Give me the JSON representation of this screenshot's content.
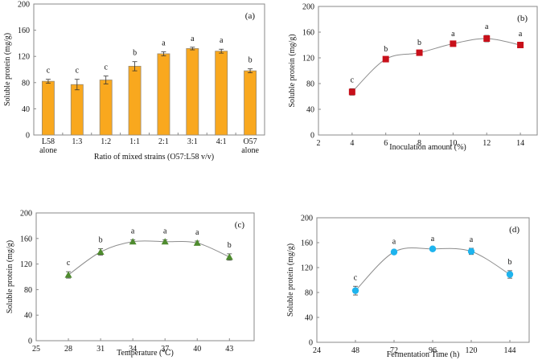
{
  "chart_data": [
    {
      "type": "bar",
      "panel_label": "(a)",
      "categories": [
        "L58\nalone",
        "1:3",
        "1:2",
        "1:1",
        "2:1",
        "3:1",
        "4:1",
        "O57\nalone"
      ],
      "values": [
        82,
        77,
        84,
        105,
        124,
        132,
        128,
        98
      ],
      "errors": [
        3,
        8,
        6,
        7,
        3,
        2,
        3,
        3
      ],
      "letters": [
        "c",
        "c",
        "c",
        "b",
        "a",
        "a",
        "a",
        "b"
      ],
      "xlabel": "Ratio of mixed strains (O57:L58 v/v)",
      "ylabel": "Soluble protein (mg/g)",
      "ylim": [
        0,
        200
      ],
      "yticks": [
        0,
        40,
        80,
        120,
        160,
        200
      ],
      "color": "#F9A81E",
      "grid": false
    },
    {
      "type": "line",
      "panel_label": "(b)",
      "x": [
        4,
        6,
        8,
        10,
        12,
        14
      ],
      "values": [
        67,
        118,
        128,
        142,
        150,
        140
      ],
      "errors": [
        5,
        2,
        2,
        2,
        5,
        4
      ],
      "letters": [
        "c",
        "b",
        "b",
        "a",
        "a",
        "a"
      ],
      "xlabel": "Inoculation amount  (%)",
      "ylabel": "Soluble protein (mg/g)",
      "xlim": [
        2,
        15
      ],
      "xticks": [
        2,
        4,
        6,
        8,
        10,
        12,
        14
      ],
      "ylim": [
        0,
        200
      ],
      "yticks": [
        0,
        40,
        80,
        120,
        160,
        200
      ],
      "marker": "square",
      "color": "#C8101A",
      "grid": false
    },
    {
      "type": "line",
      "panel_label": "(c)",
      "x": [
        28,
        31,
        34,
        37,
        40,
        43
      ],
      "values": [
        103,
        139,
        155,
        155,
        153,
        131
      ],
      "errors": [
        5,
        5,
        3,
        3,
        3,
        5
      ],
      "letters": [
        "c",
        "b",
        "a",
        "a",
        "a",
        "b"
      ],
      "xlabel": "Temperature (℃)",
      "ylabel": "Soluble protein (mg/g)",
      "xlim": [
        25,
        45.3
      ],
      "xticks": [
        25,
        28,
        31,
        34,
        37,
        40,
        43
      ],
      "ylim": [
        0,
        200
      ],
      "yticks": [
        0,
        40,
        80,
        120,
        160,
        200
      ],
      "marker": "triangle",
      "color": "#4E8B2E",
      "grid": false
    },
    {
      "type": "line",
      "panel_label": "(d)",
      "x": [
        48,
        72,
        96,
        120,
        144
      ],
      "values": [
        83,
        145,
        150,
        146,
        109
      ],
      "errors": [
        7,
        3,
        2,
        5,
        6
      ],
      "letters": [
        "c",
        "a",
        "a",
        "a",
        "b"
      ],
      "xlabel": "Fermentation Time (h)",
      "ylabel": "Soluble protein (mg/g)",
      "xlim": [
        24,
        156
      ],
      "xticks": [
        24,
        48,
        72,
        96,
        120,
        144
      ],
      "ylim": [
        0,
        200
      ],
      "yticks": [
        0,
        40,
        80,
        120,
        160,
        200
      ],
      "marker": "circle",
      "color": "#1EB4EE",
      "grid": false
    }
  ]
}
